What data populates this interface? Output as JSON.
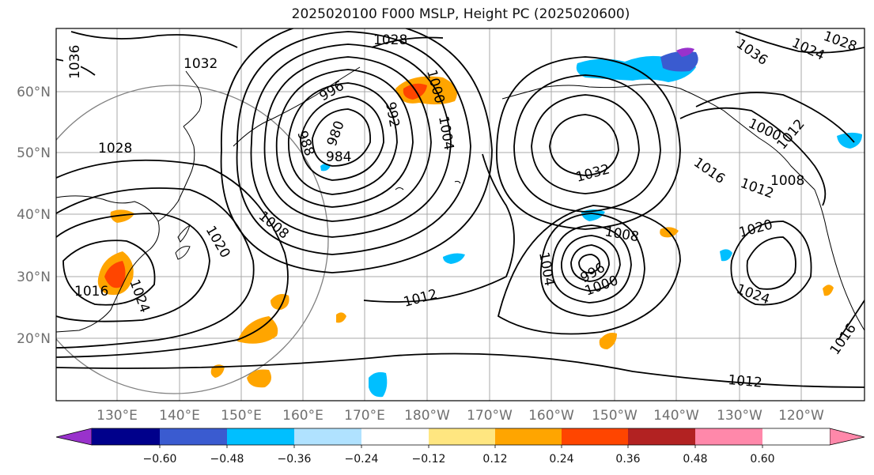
{
  "title": "2025020100 F000 MSLP, Height PC (2025020600)",
  "map": {
    "lat_labels": [
      "60°N",
      "50°N",
      "40°N",
      "30°N",
      "20°N"
    ],
    "lon_labels": [
      "130°E",
      "140°E",
      "150°E",
      "160°E",
      "170°E",
      "180°W",
      "170°W",
      "160°W",
      "150°W",
      "140°W",
      "130°W",
      "120°W"
    ],
    "isobars": [
      "1036",
      "1032",
      "1028",
      "1028",
      "1024",
      "1020",
      "1016",
      "1012",
      "1008",
      "1004",
      "1000",
      "996",
      "992",
      "988",
      "984",
      "980",
      "1032",
      "1008",
      "1004",
      "1000",
      "996",
      "1020",
      "1024",
      "1016",
      "1012",
      "1016",
      "1008",
      "1012",
      "1000",
      "1024",
      "1028",
      "1036",
      "1012"
    ]
  },
  "colorbar": {
    "colors": [
      "#9932cc",
      "#00008b",
      "#3a5bd0",
      "#00bfff",
      "#b0e2ff",
      "#ffffff",
      "#ffe680",
      "#ffa500",
      "#ff4500",
      "#b22222",
      "#ff88aa"
    ],
    "tick_labels": [
      "−0.60",
      "−0.48",
      "−0.36",
      "−0.24",
      "−0.12",
      "0.12",
      "0.24",
      "0.36",
      "0.48",
      "0.60"
    ]
  }
}
